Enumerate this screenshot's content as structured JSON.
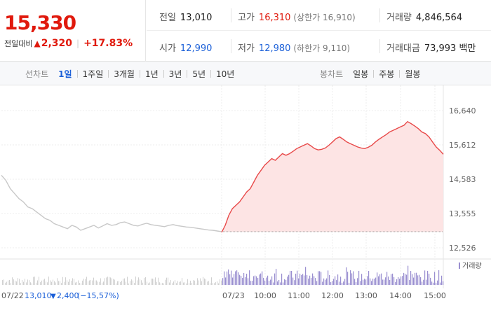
{
  "quote": {
    "price": "15,330",
    "change_label": "전일대비",
    "change_arrow": "▲",
    "change_amount": "2,320",
    "change_pct": "+17.83%",
    "stats": {
      "prev_close": {
        "label": "전일",
        "value": "13,010"
      },
      "high": {
        "label": "고가",
        "value": "16,310",
        "limit": "(상한가 16,910)"
      },
      "volume": {
        "label": "거래량",
        "value": "4,846,564"
      },
      "open": {
        "label": "시가",
        "value": "12,990"
      },
      "low": {
        "label": "저가",
        "value": "12,980",
        "limit": "(하한가 9,110)"
      },
      "amount": {
        "label": "거래대금",
        "value": "73,993 백만"
      }
    }
  },
  "toolbar": {
    "line_label": "선차트",
    "line_periods": [
      "1일",
      "1주일",
      "3개월",
      "1년",
      "3년",
      "5년",
      "10년"
    ],
    "active_period": "1일",
    "candle_label": "봉차트",
    "candle_periods": [
      "일봉",
      "주봉",
      "월봉"
    ]
  },
  "chart_data": {
    "type": "line",
    "y_ticks": [
      "16,640",
      "15,612",
      "14,583",
      "13,555",
      "12,526"
    ],
    "ylim": [
      12526,
      16640
    ],
    "prev_close": 13010,
    "legend_volume": "거래량",
    "x_labels": [
      "07/22",
      "07/23",
      "10:00",
      "11:00",
      "12:00",
      "13:00",
      "14:00",
      "15:00"
    ],
    "prev_day_footer": {
      "date": "07/22",
      "close": "13,010",
      "arrow": "▼",
      "change": "2,400",
      "pct": "(−15,57%)"
    },
    "colors": {
      "up": "#e84a4a",
      "fill": "#fde4e4",
      "prev": "#c8c8c8",
      "volume": "#9a8fd0",
      "axis_text": "#666"
    },
    "prev_day_series": [
      14700,
      14550,
      14300,
      14150,
      14000,
      13900,
      13750,
      13700,
      13600,
      13500,
      13400,
      13350,
      13250,
      13200,
      13150,
      13100,
      13200,
      13150,
      13050,
      13100,
      13150,
      13200,
      13120,
      13180,
      13250,
      13200,
      13220,
      13280,
      13300,
      13250,
      13200,
      13180,
      13230,
      13260,
      13220,
      13200,
      13180,
      13160,
      13200,
      13220,
      13190,
      13170,
      13150,
      13140,
      13120,
      13100,
      13080,
      13060,
      13050,
      13030,
      13010
    ],
    "series": [
      12990,
      13200,
      13500,
      13700,
      13800,
      13900,
      14050,
      14200,
      14300,
      14500,
      14700,
      14850,
      15000,
      15100,
      15200,
      15150,
      15250,
      15350,
      15300,
      15350,
      15420,
      15500,
      15550,
      15600,
      15650,
      15580,
      15500,
      15460,
      15480,
      15520,
      15600,
      15700,
      15800,
      15850,
      15780,
      15700,
      15650,
      15600,
      15550,
      15520,
      15500,
      15540,
      15600,
      15700,
      15780,
      15850,
      15920,
      16000,
      16050,
      16100,
      16150,
      16200,
      16310,
      16250,
      16180,
      16100,
      16000,
      15950,
      15850,
      15700,
      15550,
      15450,
      15330
    ]
  }
}
